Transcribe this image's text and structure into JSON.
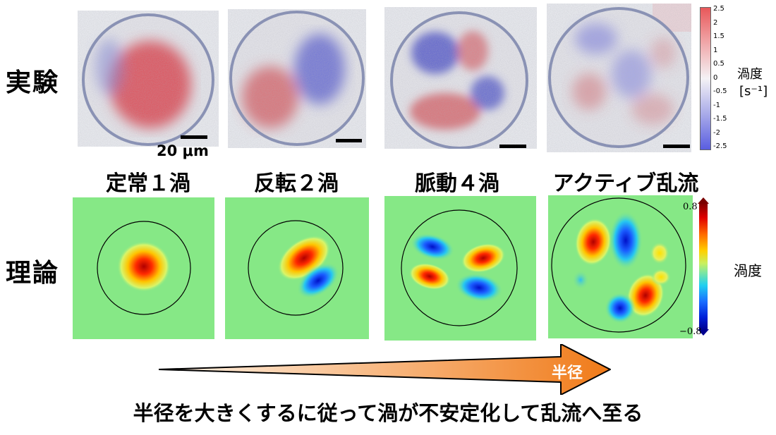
{
  "rows": {
    "experiment": "実験",
    "theory": "理論"
  },
  "columns": [
    "定常１渦",
    "反転２渦",
    "脈動４渦",
    "アクティブ乱流"
  ],
  "scale_bar_label": "20 μm",
  "experiment_colorbar": {
    "ticks": [
      "2.5",
      "2",
      "1.5",
      "1",
      "0.5",
      "0",
      "-0.5",
      "-1",
      "-1.5",
      "-2",
      "-2.5"
    ],
    "title": "渦度",
    "unit": "[s⁻¹]",
    "colors": {
      "positive": "#e8585a",
      "negative": "#5a5ee0",
      "zero": "#f4f2f5"
    }
  },
  "theory_colorbar": {
    "max_label": "0.8",
    "min_label": "−0.8",
    "title": "渦度"
  },
  "arrow": {
    "label": "半径",
    "colors": {
      "start": "#fff4e8",
      "end": "#f07a18"
    }
  },
  "caption": "半径を大きくするに従って渦が不安定化して乱流へ至る"
}
